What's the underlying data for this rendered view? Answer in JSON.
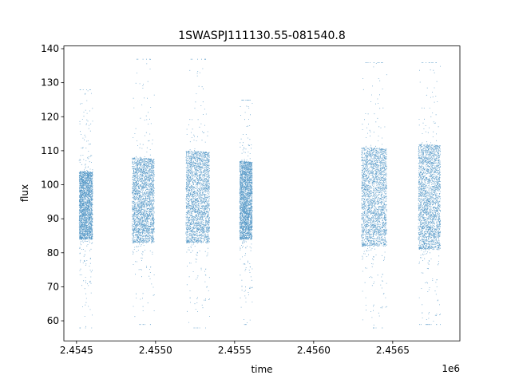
{
  "chart_data": {
    "type": "scatter",
    "title": "1SWASPJ111130.55-081540.8",
    "xlabel": "time",
    "ylabel": "flux",
    "x_offset_label": "1e6",
    "xlim": [
      2454420,
      2456925
    ],
    "ylim": [
      54.1,
      140.8
    ],
    "x_ticks": [
      2454500,
      2455000,
      2455500,
      2456000,
      2456500
    ],
    "x_tick_labels": [
      "2.4545",
      "2.4550",
      "2.4555",
      "2.4560",
      "2.4565"
    ],
    "y_ticks": [
      60,
      70,
      80,
      90,
      100,
      110,
      120,
      130,
      140
    ],
    "y_tick_labels": [
      "60",
      "70",
      "80",
      "90",
      "100",
      "110",
      "120",
      "130",
      "140"
    ],
    "grid": false,
    "marker_color": "#1f77b4",
    "series": [
      {
        "seasons": [
          {
            "x_range": [
              2454515,
              2454600
            ],
            "core_flux": [
              84,
              104
            ],
            "extremes": [
              58,
              128
            ]
          },
          {
            "x_range": [
              2454850,
              2454990
            ],
            "core_flux": [
              83,
              108
            ],
            "extremes": [
              59,
              137
            ]
          },
          {
            "x_range": [
              2455190,
              2455340
            ],
            "core_flux": [
              83,
              110
            ],
            "extremes": [
              58,
              137
            ]
          },
          {
            "x_range": [
              2455530,
              2455610
            ],
            "core_flux": [
              84,
              107
            ],
            "extremes": [
              59,
              125
            ]
          },
          {
            "x_range": [
              2456300,
              2456460
            ],
            "core_flux": [
              82,
              111
            ],
            "extremes": [
              58,
              136
            ]
          },
          {
            "x_range": [
              2456660,
              2456800
            ],
            "core_flux": [
              81,
              112
            ],
            "extremes": [
              59,
              136
            ]
          }
        ]
      }
    ]
  }
}
